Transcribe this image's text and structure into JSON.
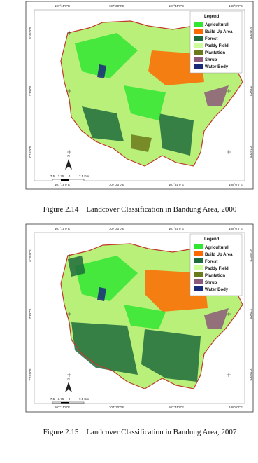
{
  "figures": [
    {
      "top_labels": [
        "107°15'0\"E",
        "107°30'0\"E",
        "107°45'0\"E",
        "108°0'0\"E"
      ],
      "bottom_labels": [
        "107°15'0\"E",
        "107°30'0\"E",
        "107°45'0\"E",
        "108°0'0\"E"
      ],
      "left_labels": [
        "6°45'0\"S",
        "7°0'0\"S",
        "7°15'0\"S"
      ],
      "right_labels": [
        "6°45'0\"S",
        "7°0'0\"S",
        "7°15'0\"S"
      ],
      "legend": {
        "title": "Legend",
        "items": [
          {
            "label": "Agricultural",
            "color": "#33e633"
          },
          {
            "label": "Build Up Area",
            "color": "#ff6a00"
          },
          {
            "label": "Forest",
            "color": "#1e6b3c"
          },
          {
            "label": "Paddy Field",
            "color": "#ccff99"
          },
          {
            "label": "Plantation",
            "color": "#6b7a1a"
          },
          {
            "label": "Shrub",
            "color": "#8b5a7a"
          },
          {
            "label": "Water Body",
            "color": "#1a2a7a"
          }
        ]
      },
      "north": "N",
      "scale_labels": [
        "7.5",
        "3.75",
        "0",
        "7.5 Km"
      ],
      "caption": "Figure 2.14    Landcover Classification in Bandung Area, 2000"
    },
    {
      "top_labels": [
        "107°15'0\"E",
        "107°30'0\"E",
        "107°45'0\"E",
        "108°0'0\"E"
      ],
      "bottom_labels": [
        "107°15'0\"E",
        "107°30'0\"E",
        "107°45'0\"E",
        "108°0'0\"E"
      ],
      "left_labels": [
        "6°45'0\"S",
        "7°0'0\"S",
        "7°15'0\"S"
      ],
      "right_labels": [
        "6°45'0\"S",
        "7°0'0\"S",
        "7°15'0\"S"
      ],
      "legend": {
        "title": "Legend",
        "items": [
          {
            "label": "Agricultural",
            "color": "#33e633"
          },
          {
            "label": "Build Up Area",
            "color": "#ff6a00"
          },
          {
            "label": "Forest",
            "color": "#1e6b3c"
          },
          {
            "label": "Paddy Field",
            "color": "#ccff99"
          },
          {
            "label": "Plantation",
            "color": "#6b7a1a"
          },
          {
            "label": "Shrub",
            "color": "#8b5a7a"
          },
          {
            "label": "Water Body",
            "color": "#1a2a7a"
          }
        ]
      },
      "north": "N",
      "scale_labels": [
        "7.5",
        "3.75",
        "0",
        "7.5 Km"
      ],
      "caption": "Figure 2.15    Landcover Classification in Bandung Area, 2007"
    }
  ]
}
